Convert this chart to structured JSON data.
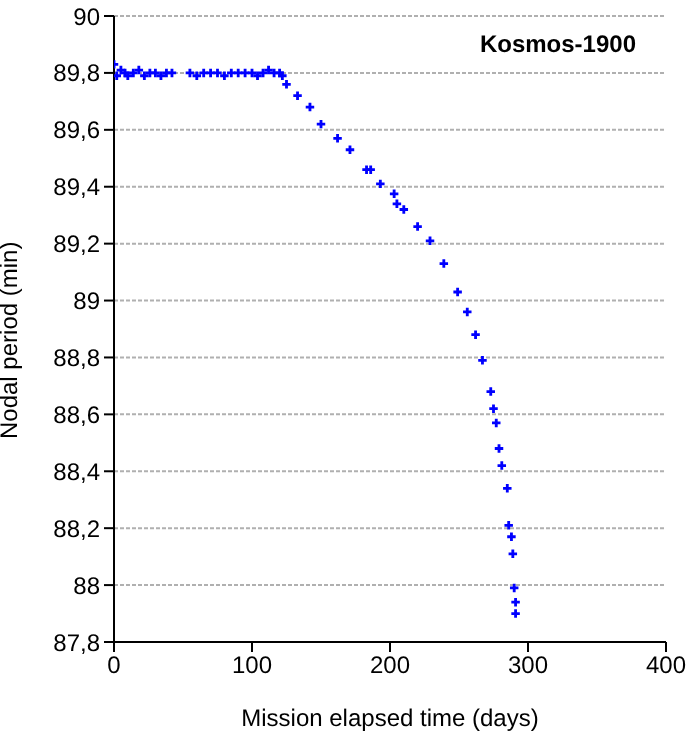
{
  "chart_data": {
    "type": "scatter",
    "title": "Kosmos-1900",
    "xlabel": "Mission elapsed time (days)",
    "ylabel": "Nodal period (min)",
    "x": [
      0,
      2,
      5,
      8,
      10,
      14,
      18,
      22,
      26,
      30,
      34,
      38,
      42,
      55,
      60,
      65,
      70,
      75,
      80,
      85,
      90,
      95,
      100,
      104,
      108,
      112,
      116,
      120,
      122,
      125,
      133,
      142,
      150,
      162,
      171,
      183,
      186,
      193,
      203,
      205,
      210,
      220,
      229,
      239,
      249,
      256,
      262,
      267,
      273,
      275,
      277,
      279,
      281,
      285,
      286,
      288,
      289,
      290,
      291,
      291
    ],
    "series": [
      {
        "color": "#0000ff",
        "values": [
          89.83,
          89.79,
          89.81,
          89.8,
          89.79,
          89.8,
          89.81,
          89.79,
          89.8,
          89.8,
          89.79,
          89.8,
          89.8,
          89.8,
          89.79,
          89.8,
          89.8,
          89.8,
          89.79,
          89.8,
          89.8,
          89.8,
          89.8,
          89.79,
          89.8,
          89.81,
          89.8,
          89.8,
          89.79,
          89.76,
          89.72,
          89.68,
          89.62,
          89.57,
          89.53,
          89.46,
          89.46,
          89.41,
          89.375,
          89.34,
          89.32,
          89.26,
          89.21,
          89.13,
          89.03,
          88.96,
          88.88,
          88.79,
          88.68,
          88.62,
          88.57,
          88.48,
          88.42,
          88.34,
          88.21,
          88.17,
          88.11,
          87.99,
          87.94,
          87.9
        ]
      }
    ],
    "xlim": [
      0,
      400
    ],
    "xticks": [
      0,
      100,
      200,
      300,
      400
    ],
    "ylim": [
      87.8,
      90
    ],
    "yticks": [
      {
        "value": 87.8,
        "label": "87,8"
      },
      {
        "value": 88,
        "label": "88"
      },
      {
        "value": 88.2,
        "label": "88,2"
      },
      {
        "value": 88.4,
        "label": "88,4"
      },
      {
        "value": 88.6,
        "label": "88,6"
      },
      {
        "value": 88.8,
        "label": "88,8"
      },
      {
        "value": 89,
        "label": "89"
      },
      {
        "value": 89.2,
        "label": "89,2"
      },
      {
        "value": 89.4,
        "label": "89,4"
      },
      {
        "value": 89.6,
        "label": "89,6"
      },
      {
        "value": 89.8,
        "label": "89,8"
      },
      {
        "value": 90,
        "label": "90"
      }
    ],
    "grid": "y",
    "marker": "cross",
    "legend": false
  }
}
